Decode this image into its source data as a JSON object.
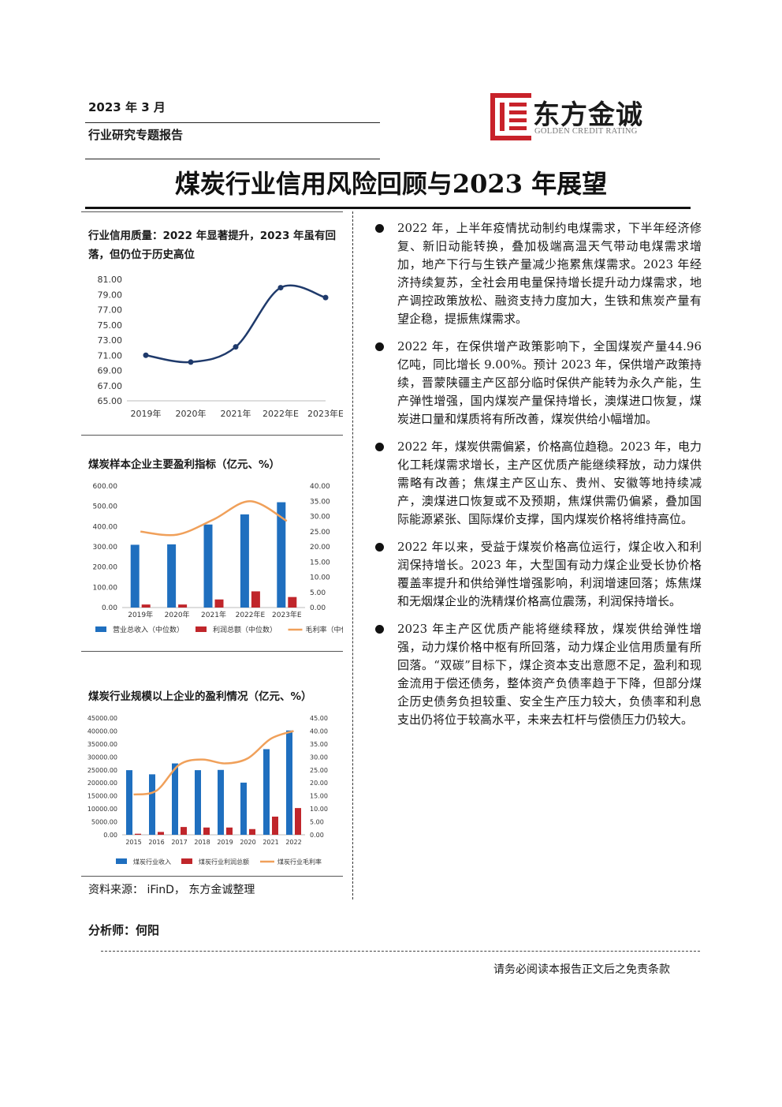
{
  "header": {
    "date": "2023 年 3 月",
    "report_type": "行业研究专题报告",
    "logo_cn": "东方金诚",
    "logo_en": "GOLDEN CREDIT RATING"
  },
  "title": "煤炭行业信用风险回顾与2023 年展望",
  "charts": {
    "quality": {
      "title_line1": "行业信用质量：2022 年显著提升，2023 年虽有回",
      "title_line2": "落，但仍位于历史高位"
    },
    "sample": {
      "title": "煤炭样本企业主要盈利指标（亿元、%）"
    },
    "industry": {
      "title": "煤炭行业规模以上企业的盈利情况（亿元、%）"
    }
  },
  "chart_data": [
    {
      "type": "line",
      "x": [
        "2019年",
        "2020年",
        "2021年",
        "2022年E",
        "2023年E"
      ],
      "series": [
        {
          "values": [
            71.0,
            70.1,
            72.1,
            79.9,
            78.6
          ]
        }
      ],
      "ylim": [
        65.0,
        81.0
      ],
      "yticks": [
        "81.00",
        "79.00",
        "77.00",
        "75.00",
        "73.00",
        "71.00",
        "69.00",
        "67.00",
        "65.00"
      ],
      "grid": false,
      "color": "#1f3a6b"
    },
    {
      "type": "bar",
      "categories": [
        "2019年",
        "2020年",
        "2021年",
        "2022年E",
        "2023年E"
      ],
      "series": [
        {
          "name": "营业总收入（中位数）",
          "values": [
            310,
            312,
            410,
            460,
            520
          ],
          "axis": "left",
          "color": "#1f6fbf"
        },
        {
          "name": "利润总额（中位数）",
          "values": [
            15,
            15,
            40,
            80,
            52
          ],
          "axis": "left",
          "color": "#c0262b"
        },
        {
          "name": "毛利率（中位数）",
          "values": [
            25.0,
            24.0,
            29.0,
            35.0,
            28.5
          ],
          "axis": "right",
          "kind": "line",
          "color": "#f0a05a"
        }
      ],
      "ylim": [
        0,
        600
      ],
      "y2lim": [
        0,
        40
      ],
      "yticks": [
        "600.00",
        "500.00",
        "400.00",
        "300.00",
        "200.00",
        "100.00",
        "0.00"
      ],
      "y2ticks": [
        "40.00",
        "35.00",
        "30.00",
        "25.00",
        "20.00",
        "15.00",
        "10.00",
        "5.00",
        "0.00"
      ],
      "legend": "bottom"
    },
    {
      "type": "bar",
      "categories": [
        "2015",
        "2016",
        "2017",
        "2018",
        "2019",
        "2020",
        "2021",
        "2022"
      ],
      "series": [
        {
          "name": "煤炭行业收入",
          "values": [
            24900,
            23300,
            27500,
            24900,
            25000,
            20100,
            33000,
            40200
          ],
          "axis": "left",
          "color": "#1f6fbf"
        },
        {
          "name": "煤炭行业利润总额",
          "values": [
            400,
            1100,
            3000,
            2800,
            2800,
            2200,
            7000,
            10300
          ],
          "axis": "left",
          "color": "#c0262b"
        },
        {
          "name": "煤炭行业毛利率",
          "values": [
            15.5,
            17.0,
            27.0,
            29.0,
            27.5,
            29.5,
            37.0,
            40.0
          ],
          "axis": "right",
          "kind": "line",
          "color": "#f0a05a"
        }
      ],
      "ylim": [
        0,
        45000
      ],
      "y2lim": [
        0,
        45
      ],
      "yticks": [
        "45000.00",
        "40000.00",
        "35000.00",
        "30000.00",
        "25000.00",
        "20000.00",
        "15000.00",
        "10000.00",
        "5000.00",
        "0.00"
      ],
      "y2ticks": [
        "45.00",
        "40.00",
        "35.00",
        "30.00",
        "25.00",
        "20.00",
        "15.00",
        "10.00",
        "5.00",
        "0.00"
      ],
      "legend": "bottom"
    }
  ],
  "source": "资料来源： iFinD， 东方金诚整理",
  "analyst": "分析师：何阳",
  "footer": "请务必阅读本报告正文后之免责条款",
  "bullets": [
    "2022 年，上半年疫情扰动制约电煤需求，下半年经济修复、新旧动能转换，叠加极端高温天气带动电煤需求增加，地产下行与生铁产量减少拖累焦煤需求。2023 年经济持续复苏，全社会用电量保持增长提升动力煤需求，地产调控政策放松、融资支持力度加大，生铁和焦炭产量有望企稳，提振焦煤需求。",
    "2022 年，在保供增产政策影响下，全国煤炭产量44.96 亿吨，同比增长 9.00%。预计 2023 年，保供增产政策持续，晋蒙陕疆主产区部分临时保供产能转为永久产能，生产弹性增强，国内煤炭产量保持增长，澳煤进口恢复，煤炭进口量和煤质将有所改善，煤炭供给小幅增加。",
    "2022 年，煤炭供需偏紧，价格高位趋稳。2023 年，电力化工耗煤需求增长，主产区优质产能继续释放，动力煤供需略有改善；焦煤主产区山东、贵州、安徽等地持续减产，澳煤进口恢复或不及预期，焦煤供需仍偏紧，叠加国际能源紧张、国际煤价支撑，国内煤炭价格将维持高位。",
    "2022 年以来，受益于煤炭价格高位运行，煤企收入和利润保持增长。2023 年，大型国有动力煤企业受长协价格覆盖率提升和供给弹性增强影响，利润增速回落；炼焦煤和无烟煤企业的洗精煤价格高位震荡，利润保持增长。",
    "2023 年主产区优质产能将继续释放，煤炭供给弹性增强，动力煤价格中枢有所回落，动力煤企业信用质量有所回落。“双碳”目标下，煤企资本支出意愿不足，盈利和现金流用于偿还债务，整体资产负债率趋于下降，但部分煤企历史债务负担较重、安全生产压力较大，负债率和利息支出仍将位于较高水平，未来去杠杆与偿债压力仍较大。"
  ]
}
